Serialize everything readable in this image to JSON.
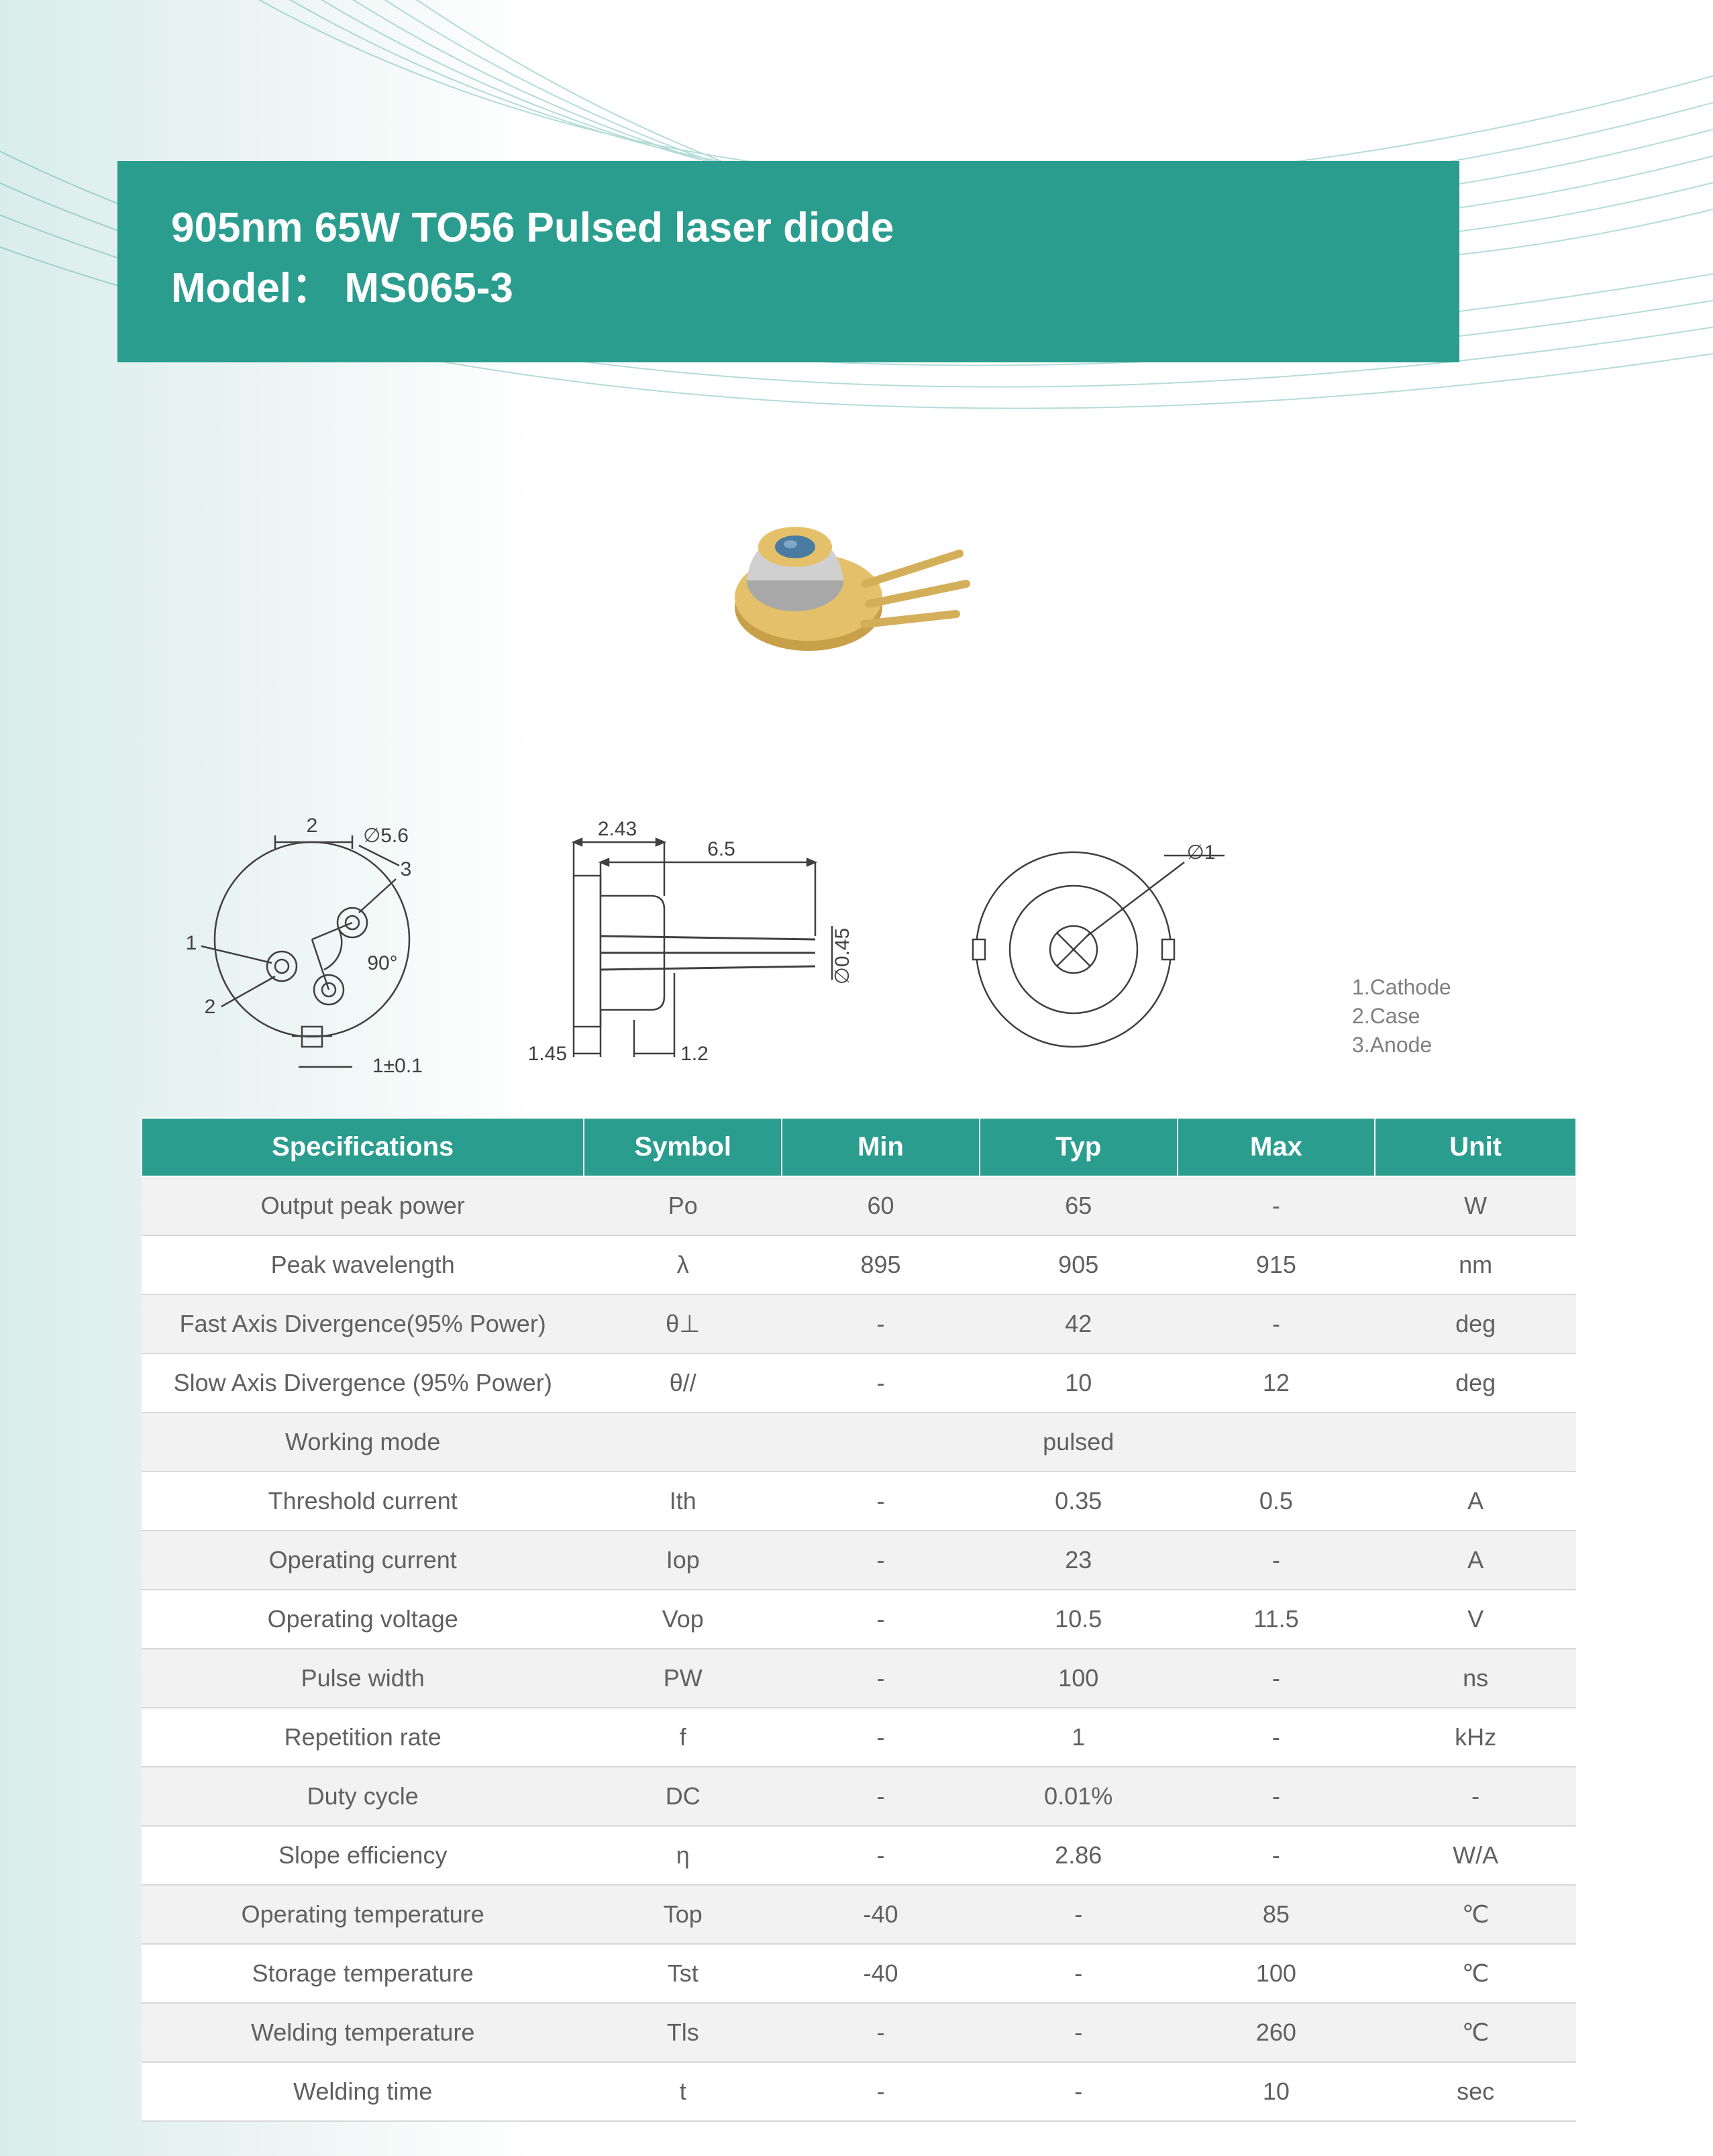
{
  "header": {
    "title_line1": "905nm 65W TO56 Pulsed laser diode",
    "title_line2": "Model： MS065-3",
    "banner_color": "#2a9d8f",
    "text_color": "#ffffff"
  },
  "background": {
    "gradient_start": "#d9edea",
    "gradient_end": "#ffffff",
    "wave_color": "#2a9d8f"
  },
  "product_photo": {
    "body_color": "#d4af5a",
    "cap_color": "#c8c8c8",
    "lens_color": "#5a8eb5",
    "pin_color": "#d4af5a"
  },
  "diagrams": {
    "stroke_color": "#404040",
    "text_color": "#404040",
    "front": {
      "diameter_label": "∅5.6",
      "pins": [
        "1",
        "2",
        "3"
      ],
      "angle_label": "90°",
      "base_tolerance": "1±0.1",
      "extra_label": "2"
    },
    "side": {
      "cap_top": "2.43",
      "total_length": "6.5",
      "base_width": "1.45",
      "pin_offset": "1.2",
      "pin_dia": "∅0.45"
    },
    "rear": {
      "center_dia": "∅1"
    }
  },
  "pin_legend": {
    "items": [
      "1.Cathode",
      "2.Case",
      "3.Anode"
    ],
    "text_color": "#808080"
  },
  "spec_table": {
    "header_bg": "#2a9d8f",
    "header_fg": "#ffffff",
    "row_odd_bg": "#f2f2f2",
    "row_even_bg": "#ffffff",
    "border_color": "#d8d8d8",
    "cell_fg": "#606060",
    "columns": [
      "Specifications",
      "Symbol",
      "Min",
      "Typ",
      "Max",
      "Unit"
    ],
    "rows": [
      {
        "spec": "Output peak power",
        "sym": "Po",
        "min": "60",
        "typ": "65",
        "max": "-",
        "unit": "W"
      },
      {
        "spec": "Peak wavelength",
        "sym": "λ",
        "min": "895",
        "typ": "905",
        "max": "915",
        "unit": "nm"
      },
      {
        "spec": "Fast Axis Divergence(95% Power)",
        "sym": "θ⊥",
        "min": "-",
        "typ": "42",
        "max": "-",
        "unit": "deg"
      },
      {
        "spec": "Slow Axis Divergence (95% Power)",
        "sym": "θ//",
        "min": "-",
        "typ": "10",
        "max": "12",
        "unit": "deg"
      },
      {
        "spec": "Working mode",
        "sym": "",
        "min": "",
        "typ": "pulsed",
        "max": "",
        "unit": ""
      },
      {
        "spec": "Threshold current",
        "sym": "Ith",
        "min": "-",
        "typ": "0.35",
        "max": "0.5",
        "unit": "A"
      },
      {
        "spec": "Operating current",
        "sym": "Iop",
        "min": "-",
        "typ": "23",
        "max": "-",
        "unit": "A"
      },
      {
        "spec": "Operating voltage",
        "sym": "Vop",
        "min": "-",
        "typ": "10.5",
        "max": "11.5",
        "unit": "V"
      },
      {
        "spec": "Pulse width",
        "sym": "PW",
        "min": "-",
        "typ": "100",
        "max": "-",
        "unit": "ns"
      },
      {
        "spec": "Repetition rate",
        "sym": "f",
        "min": "-",
        "typ": "1",
        "max": "-",
        "unit": "kHz"
      },
      {
        "spec": "Duty cycle",
        "sym": "DC",
        "min": "-",
        "typ": "0.01%",
        "max": "-",
        "unit": "-"
      },
      {
        "spec": "Slope efficiency",
        "sym": "η",
        "min": "-",
        "typ": "2.86",
        "max": "-",
        "unit": "W/A"
      },
      {
        "spec": "Operating temperature",
        "sym": "Top",
        "min": "-40",
        "typ": "-",
        "max": "85",
        "unit": "℃"
      },
      {
        "spec": "Storage temperature",
        "sym": "Tst",
        "min": "-40",
        "typ": "-",
        "max": "100",
        "unit": "℃"
      },
      {
        "spec": "Welding temperature",
        "sym": "Tls",
        "min": "-",
        "typ": "-",
        "max": "260",
        "unit": "℃"
      },
      {
        "spec": "Welding time",
        "sym": "t",
        "min": "-",
        "typ": "-",
        "max": "10",
        "unit": "sec"
      }
    ]
  }
}
